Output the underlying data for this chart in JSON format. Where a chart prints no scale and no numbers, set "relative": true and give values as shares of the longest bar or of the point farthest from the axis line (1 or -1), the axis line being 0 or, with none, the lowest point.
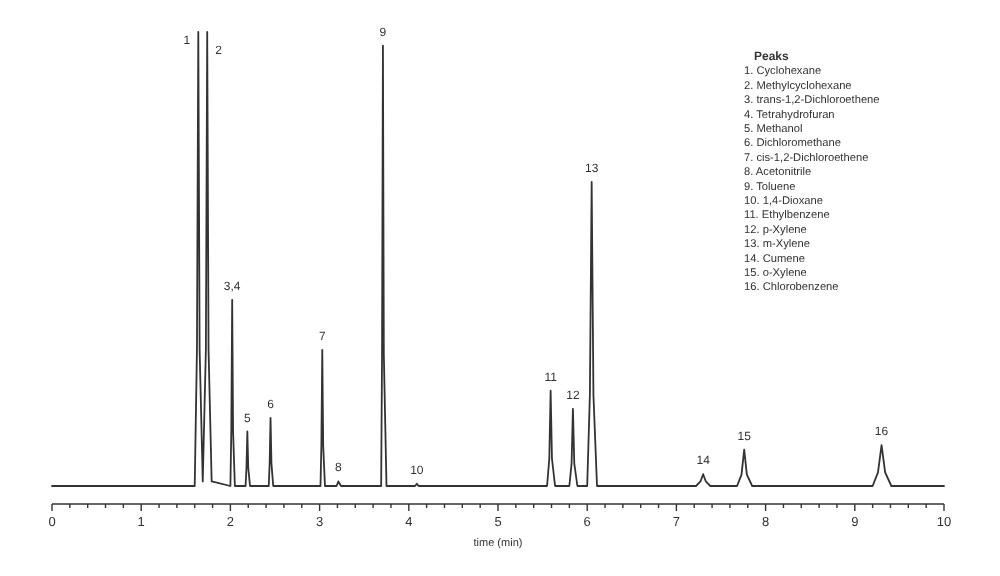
{
  "chart_data": {
    "type": "line",
    "relative": true,
    "xlabel": "time (min)",
    "xlim": [
      0,
      10
    ],
    "xticks": [
      0,
      {
        "value": 0.2,
        "label": null
      },
      {
        "value": 0.4,
        "label": null
      },
      {
        "value": 0.6,
        "label": null
      },
      {
        "value": 0.8,
        "label": null
      },
      1,
      {
        "value": 1.2,
        "label": null
      },
      {
        "value": 1.4,
        "label": null
      },
      {
        "value": 1.6,
        "label": null
      },
      {
        "value": 1.8,
        "label": null
      },
      2,
      {
        "value": 2.2,
        "label": null
      },
      {
        "value": 2.4,
        "label": null
      },
      {
        "value": 2.6,
        "label": null
      },
      {
        "value": 2.8,
        "label": null
      },
      3,
      {
        "value": 3.2,
        "label": null
      },
      {
        "value": 3.4,
        "label": null
      },
      {
        "value": 3.6,
        "label": null
      },
      {
        "value": 3.8,
        "label": null
      },
      4,
      {
        "value": 4.2,
        "label": null
      },
      {
        "value": 4.4,
        "label": null
      },
      {
        "value": 4.6,
        "label": null
      },
      {
        "value": 4.8,
        "label": null
      },
      5,
      {
        "value": 5.2,
        "label": null
      },
      {
        "value": 5.4,
        "label": null
      },
      {
        "value": 5.6,
        "label": null
      },
      {
        "value": 5.8,
        "label": null
      },
      6,
      {
        "value": 6.2,
        "label": null
      },
      {
        "value": 6.4,
        "label": null
      },
      {
        "value": 6.6,
        "label": null
      },
      {
        "value": 6.8,
        "label": null
      },
      7,
      {
        "value": 7.2,
        "label": null
      },
      {
        "value": 7.4,
        "label": null
      },
      {
        "value": 7.6,
        "label": null
      },
      {
        "value": 7.8,
        "label": null
      },
      8,
      {
        "value": 8.2,
        "label": null
      },
      {
        "value": 8.4,
        "label": null
      },
      {
        "value": 8.6,
        "label": null
      },
      {
        "value": 8.8,
        "label": null
      },
      9,
      {
        "value": 9.2,
        "label": null
      },
      {
        "value": 9.4,
        "label": null
      },
      {
        "value": 9.6,
        "label": null
      },
      {
        "value": 9.8,
        "label": null
      },
      10
    ],
    "series": [
      {
        "color": "#333333",
        "x": [
          0,
          1.6,
          1.625,
          1.64,
          1.655,
          1.69,
          1.725,
          1.74,
          1.755,
          1.79,
          2.0,
          2.01,
          2.02,
          2.03,
          2.05,
          2.17,
          2.18,
          2.19,
          2.2,
          2.22,
          2.43,
          2.44,
          2.45,
          2.46,
          2.48,
          3.01,
          3.02,
          3.03,
          3.04,
          3.06,
          3.19,
          3.21,
          3.24,
          3.69,
          3.7,
          3.71,
          3.72,
          3.75,
          4.07,
          4.09,
          4.11,
          5.55,
          5.575,
          5.59,
          5.605,
          5.64,
          5.8,
          5.825,
          5.84,
          5.855,
          5.89,
          6.0,
          6.03,
          6.05,
          6.07,
          6.11,
          7.22,
          7.27,
          7.3,
          7.33,
          7.38,
          7.68,
          7.73,
          7.76,
          7.79,
          7.85,
          9.2,
          9.26,
          9.3,
          9.34,
          9.41,
          10
        ],
        "values": [
          0,
          0,
          0.3,
          1,
          0.3,
          0.01,
          0.3,
          1,
          0.3,
          0.01,
          0,
          0.12,
          0.41,
          0.12,
          0,
          0,
          0.04,
          0.12,
          0.04,
          0,
          0,
          0.05,
          0.15,
          0.05,
          0,
          0,
          0.09,
          0.3,
          0.09,
          0,
          0,
          0.01,
          0,
          0,
          0.29,
          0.97,
          0.29,
          0,
          0,
          0.005,
          0,
          0,
          0.06,
          0.21,
          0.06,
          0,
          0,
          0.05,
          0.17,
          0.05,
          0,
          0,
          0.2,
          0.67,
          0.2,
          0,
          0,
          0.01,
          0.026,
          0.01,
          0,
          0,
          0.025,
          0.08,
          0.025,
          0,
          0,
          0.03,
          0.09,
          0.03,
          0,
          0
        ]
      }
    ],
    "annotations": [
      {
        "text": "1",
        "x": 1.64,
        "y": 1
      },
      {
        "text": "2",
        "x": 1.74,
        "y": 1
      },
      {
        "text": "3,4",
        "x": 2.02,
        "y": 0.41
      },
      {
        "text": "5",
        "x": 2.19,
        "y": 0.12
      },
      {
        "text": "6",
        "x": 2.45,
        "y": 0.15
      },
      {
        "text": "7",
        "x": 3.03,
        "y": 0.3
      },
      {
        "text": "8",
        "x": 3.21,
        "y": 0.01
      },
      {
        "text": "9",
        "x": 3.71,
        "y": 0.97
      },
      {
        "text": "10",
        "x": 4.09,
        "y": 0.005
      },
      {
        "text": "11",
        "x": 5.59,
        "y": 0.21
      },
      {
        "text": "12",
        "x": 5.84,
        "y": 0.17
      },
      {
        "text": "13",
        "x": 6.05,
        "y": 0.67
      },
      {
        "text": "14",
        "x": 7.3,
        "y": 0.026
      },
      {
        "text": "15",
        "x": 7.76,
        "y": 0.08
      },
      {
        "text": "16",
        "x": 9.3,
        "y": 0.09
      },
      "Peaks",
      "1. Cyclohexane",
      "2. Methylcyclohexane",
      "3. trans-1,2-Dichloroethene",
      "4. Tetrahydrofuran",
      "5. Methanol",
      "6. Dichloromethane",
      "7. cis-1,2-Dichloroethene",
      "8. Acetonitrile",
      "9. Toluene",
      "10. 1,4-Dioxane",
      "11. Ethylbenzene",
      "12. p-Xylene",
      "13. m-Xylene",
      "14. Cumene",
      "15. o-Xylene",
      "16. Chlorobenzene"
    ]
  }
}
